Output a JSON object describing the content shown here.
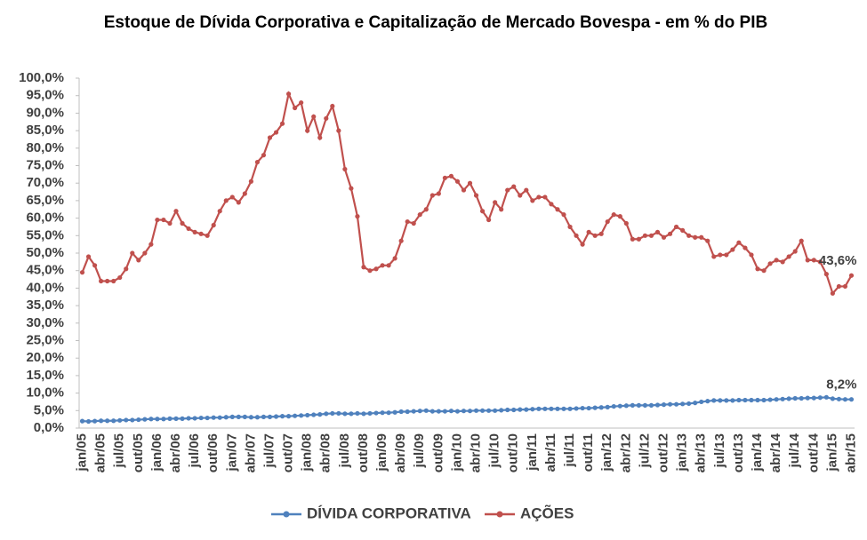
{
  "chart_data": {
    "type": "line",
    "title": "Estoque de Dívida Corporativa e Capitalização de Mercado Bovespa - em % do PIB",
    "categories": [
      "jan/05",
      null,
      null,
      "abr/05",
      null,
      null,
      "jul/05",
      null,
      null,
      "out/05",
      null,
      null,
      "jan/06",
      null,
      null,
      "abr/06",
      null,
      null,
      "jul/06",
      null,
      null,
      "out/06",
      null,
      null,
      "jan/07",
      null,
      null,
      "abr/07",
      null,
      null,
      "jul/07",
      null,
      null,
      "out/07",
      null,
      null,
      "jan/08",
      null,
      null,
      "abr/08",
      null,
      null,
      "jul/08",
      null,
      null,
      "out/08",
      null,
      null,
      "jan/09",
      null,
      null,
      "abr/09",
      null,
      null,
      "jul/09",
      null,
      null,
      "out/09",
      null,
      null,
      "jan/10",
      null,
      null,
      "abr/10",
      null,
      null,
      "jul/10",
      null,
      null,
      "out/10",
      null,
      null,
      "jan/11",
      null,
      null,
      "abr/11",
      null,
      null,
      "jul/11",
      null,
      null,
      "out/11",
      null,
      null,
      "jan/12",
      null,
      null,
      "abr/12",
      null,
      null,
      "jul/12",
      null,
      null,
      "out/12",
      null,
      null,
      "jan/13",
      null,
      null,
      "abr/13",
      null,
      null,
      "jul/13",
      null,
      null,
      "out/13",
      null,
      null,
      "jan/14",
      null,
      null,
      "abr/14",
      null,
      null,
      "jul/14",
      null,
      null,
      "out/14",
      null,
      null,
      "jan/15",
      null,
      null,
      "abr/15"
    ],
    "series": [
      {
        "name": "DÍVIDA CORPORATIVA",
        "color": "#4f81bd",
        "values": [
          2.0,
          1.9,
          2.0,
          2.1,
          2.1,
          2.1,
          2.2,
          2.3,
          2.3,
          2.4,
          2.5,
          2.6,
          2.6,
          2.6,
          2.7,
          2.7,
          2.7,
          2.8,
          2.8,
          2.9,
          2.9,
          3.0,
          3.0,
          3.1,
          3.2,
          3.2,
          3.2,
          3.1,
          3.1,
          3.2,
          3.2,
          3.3,
          3.4,
          3.4,
          3.5,
          3.6,
          3.7,
          3.8,
          3.9,
          4.1,
          4.2,
          4.2,
          4.1,
          4.1,
          4.2,
          4.1,
          4.2,
          4.3,
          4.4,
          4.4,
          4.5,
          4.7,
          4.7,
          4.8,
          4.9,
          5.0,
          4.8,
          4.8,
          4.8,
          4.9,
          4.8,
          4.9,
          4.9,
          5.0,
          5.0,
          5.0,
          5.0,
          5.1,
          5.2,
          5.2,
          5.3,
          5.3,
          5.4,
          5.5,
          5.5,
          5.5,
          5.5,
          5.5,
          5.5,
          5.6,
          5.7,
          5.7,
          5.8,
          5.9,
          6.0,
          6.2,
          6.3,
          6.4,
          6.5,
          6.5,
          6.5,
          6.5,
          6.6,
          6.7,
          6.8,
          6.8,
          6.9,
          7.0,
          7.2,
          7.5,
          7.7,
          7.9,
          7.9,
          7.9,
          7.9,
          8.0,
          8.0,
          8.0,
          8.0,
          8.0,
          8.1,
          8.2,
          8.3,
          8.4,
          8.5,
          8.5,
          8.6,
          8.6,
          8.7,
          8.8,
          8.4,
          8.3,
          8.2,
          8.2
        ],
        "value_labels": [
          null,
          null,
          null,
          null,
          null,
          null,
          null,
          null,
          null,
          null,
          null,
          null,
          null,
          null,
          null,
          null,
          null,
          null,
          null,
          null,
          null,
          null,
          null,
          null,
          null,
          null,
          null,
          null,
          null,
          null,
          null,
          null,
          null,
          null,
          null,
          null,
          null,
          null,
          null,
          null,
          null,
          null,
          null,
          null,
          null,
          null,
          null,
          null,
          null,
          null,
          null,
          null,
          null,
          null,
          null,
          null,
          null,
          null,
          null,
          null,
          null,
          null,
          null,
          null,
          null,
          null,
          null,
          null,
          null,
          null,
          null,
          null,
          null,
          null,
          null,
          null,
          null,
          null,
          null,
          null,
          null,
          null,
          null,
          null,
          null,
          null,
          null,
          null,
          null,
          null,
          null,
          null,
          null,
          null,
          null,
          null,
          null,
          null,
          null,
          null,
          null,
          null,
          null,
          null,
          null,
          null,
          null,
          null,
          null,
          null,
          null,
          null,
          null,
          null,
          null,
          null,
          null,
          null,
          null,
          null,
          null,
          null,
          null,
          "8,2%"
        ]
      },
      {
        "name": "AÇÕES",
        "color": "#c0504d",
        "values": [
          44.5,
          49,
          46.5,
          42,
          42,
          42,
          43,
          45.5,
          50,
          48,
          50,
          52.5,
          59.5,
          59.5,
          58.5,
          62,
          58.5,
          57,
          56,
          55.5,
          55,
          58,
          62,
          65,
          66,
          64.5,
          67,
          70.5,
          76,
          78,
          83,
          84.5,
          87,
          95.5,
          91.5,
          93,
          85,
          89,
          83,
          88.5,
          92,
          85,
          74,
          68.5,
          60.5,
          46,
          45,
          45.5,
          46.5,
          46.5,
          48.5,
          53.5,
          59,
          58.5,
          61,
          62.5,
          66.5,
          67,
          71.5,
          72,
          70.5,
          68,
          70,
          66.5,
          62,
          59.5,
          64.5,
          62.5,
          68,
          69,
          66.5,
          68,
          65,
          66,
          66,
          64,
          62.5,
          61,
          57.5,
          55,
          52.5,
          56,
          55,
          55.5,
          59,
          61,
          60.5,
          58.5,
          54,
          54,
          55,
          55,
          56,
          54.5,
          55.5,
          57.5,
          56.5,
          55,
          54.5,
          54.5,
          53.5,
          49,
          49.5,
          49.5,
          51,
          53,
          51.5,
          49.5,
          45.5,
          45,
          47,
          48,
          47.5,
          49,
          50.5,
          53.5,
          48,
          48,
          47.5,
          44,
          38.5,
          40.5,
          40.5,
          43.6
        ],
        "value_labels": [
          null,
          null,
          null,
          null,
          null,
          null,
          null,
          null,
          null,
          null,
          null,
          null,
          null,
          null,
          null,
          null,
          null,
          null,
          null,
          null,
          null,
          null,
          null,
          null,
          null,
          null,
          null,
          null,
          null,
          null,
          null,
          null,
          null,
          null,
          null,
          null,
          null,
          null,
          null,
          null,
          null,
          null,
          null,
          null,
          null,
          null,
          null,
          null,
          null,
          null,
          null,
          null,
          null,
          null,
          null,
          null,
          null,
          null,
          null,
          null,
          null,
          null,
          null,
          null,
          null,
          null,
          null,
          null,
          null,
          null,
          null,
          null,
          null,
          null,
          null,
          null,
          null,
          null,
          null,
          null,
          null,
          null,
          null,
          null,
          null,
          null,
          null,
          null,
          null,
          null,
          null,
          null,
          null,
          null,
          null,
          null,
          null,
          null,
          null,
          null,
          null,
          null,
          null,
          null,
          null,
          null,
          null,
          null,
          null,
          null,
          null,
          null,
          null,
          null,
          null,
          null,
          null,
          null,
          null,
          null,
          null,
          null,
          null,
          "43,6%"
        ]
      }
    ],
    "ylim": [
      0,
      100
    ],
    "yticks": [
      {
        "value": 0,
        "label": "0,0%"
      },
      {
        "value": 5,
        "label": "5,0%"
      },
      {
        "value": 10,
        "label": "10,0%"
      },
      {
        "value": 15,
        "label": "15,0%"
      },
      {
        "value": 20,
        "label": "20,0%"
      },
      {
        "value": 25,
        "label": "25,0%"
      },
      {
        "value": 30,
        "label": "30,0%"
      },
      {
        "value": 35,
        "label": "35,0%"
      },
      {
        "value": 40,
        "label": "40,0%"
      },
      {
        "value": 45,
        "label": "45,0%"
      },
      {
        "value": 50,
        "label": "50,0%"
      },
      {
        "value": 55,
        "label": "55,0%"
      },
      {
        "value": 60,
        "label": "60,0%"
      },
      {
        "value": 65,
        "label": "65,0%"
      },
      {
        "value": 70,
        "label": "70,0%"
      },
      {
        "value": 75,
        "label": "75,0%"
      },
      {
        "value": 80,
        "label": "80,0%"
      },
      {
        "value": 85,
        "label": "85,0%"
      },
      {
        "value": 90,
        "label": "90,0%"
      },
      {
        "value": 95,
        "label": "95,0%"
      },
      {
        "value": 100,
        "label": "100,0%"
      }
    ],
    "grid": false,
    "legend": "bottom"
  }
}
